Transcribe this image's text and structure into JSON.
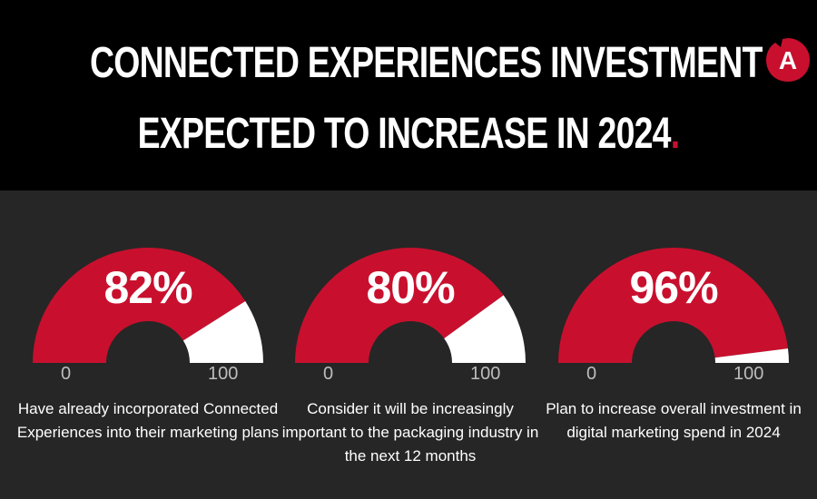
{
  "header": {
    "title_line1": "CONNECTED EXPERIENCES INVESTMENT",
    "title_line2": "EXPECTED TO INCREASE IN 2024",
    "title_period": ".",
    "logo_letter": "A"
  },
  "colors": {
    "accent": "#c8102e",
    "gauge_remainder": "#ffffff",
    "header_bg": "#000000",
    "body_bg": "#262626"
  },
  "chart_data": [
    {
      "type": "gauge",
      "value": 82,
      "min": 0,
      "max": 100,
      "value_label": "82%",
      "min_label": "0",
      "max_label": "100",
      "caption": "Have already incorporated Connected Experiences into their marketing plans"
    },
    {
      "type": "gauge",
      "value": 80,
      "min": 0,
      "max": 100,
      "value_label": "80%",
      "min_label": "0",
      "max_label": "100",
      "caption": "Consider it will be increasingly important to the packaging industry in the next 12 months"
    },
    {
      "type": "gauge",
      "value": 96,
      "min": 0,
      "max": 100,
      "value_label": "96%",
      "min_label": "0",
      "max_label": "100",
      "caption": "Plan to increase overall investment in digital marketing spend in 2024"
    }
  ]
}
